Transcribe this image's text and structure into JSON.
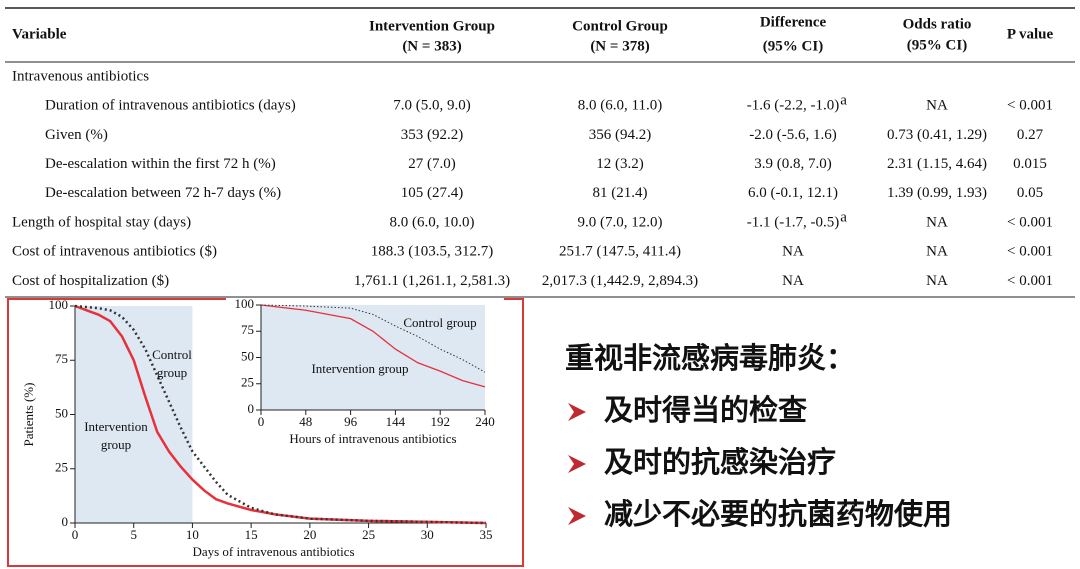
{
  "table": {
    "header": [
      [
        "Variable"
      ],
      [
        "Intervention Group",
        "(N = 383)"
      ],
      [
        "Control Group",
        "(N = 378)"
      ],
      [
        "Difference",
        "(95% CI)"
      ],
      [
        "Odds ratio",
        "(95% CI)"
      ],
      [
        "P value"
      ]
    ],
    "rows": [
      {
        "cells": [
          "Intravenous antibiotics"
        ],
        "indent": false
      },
      {
        "cells": [
          "Duration of intravenous antibiotics (days)",
          "7.0 (5.0, 9.0)",
          "8.0 (6.0, 11.0)",
          "-1.6 (-2.2, -1.0)",
          "NA",
          "< 0.001"
        ],
        "difference_note": "a",
        "indent": true
      },
      {
        "cells": [
          "Given (%)",
          "353 (92.2)",
          "356 (94.2)",
          "-2.0 (-5.6, 1.6)",
          "0.73 (0.41, 1.29)",
          "0.27"
        ],
        "indent": true
      },
      {
        "cells": [
          "De-escalation within the first 72 h (%)",
          "27 (7.0)",
          "12 (3.2)",
          "3.9 (0.8, 7.0)",
          "2.31 (1.15, 4.64)",
          "0.015"
        ],
        "indent": true
      },
      {
        "cells": [
          "De-escalation between 72 h-7 days (%)",
          "105 (27.4)",
          "81 (21.4)",
          "6.0 (-0.1, 12.1)",
          "1.39 (0.99, 1.93)",
          "0.05"
        ],
        "indent": true
      },
      {
        "cells": [
          "Length of hospital stay (days)",
          "8.0 (6.0, 10.0)",
          "9.0 (7.0, 12.0)",
          "-1.1 (-1.7, -0.5)",
          "NA",
          "< 0.001"
        ],
        "difference_note": "a",
        "indent": false
      },
      {
        "cells": [
          "Cost of intravenous antibiotics ($)",
          "188.3 (103.5, 312.7)",
          "251.7 (147.5, 411.4)",
          "NA",
          "NA",
          "< 0.001"
        ],
        "indent": false
      },
      {
        "cells": [
          "Cost of hospitalization ($)",
          "1,761.1 (1,261.1, 2,581.3)",
          "2,017.3 (1,442.9, 2,894.3)",
          "NA",
          "NA",
          "< 0.001"
        ],
        "indent": false
      }
    ]
  },
  "chart_data": [
    {
      "type": "line",
      "x_label": "Days of intravenous antibiotics",
      "y_label": "Patients (%)",
      "x": [
        0,
        2,
        3,
        4,
        5,
        6,
        7,
        8,
        9,
        10,
        11,
        12,
        13,
        15,
        17,
        20,
        25,
        30,
        35
      ],
      "series": [
        {
          "name": "Intervention group",
          "color": "#e8303a",
          "line_style": "solid",
          "values": [
            100,
            96,
            93,
            86,
            75,
            58,
            42,
            33,
            26,
            20,
            15,
            11,
            9,
            6,
            4,
            2,
            1,
            0.5,
            0
          ]
        },
        {
          "name": "Control group",
          "color": "#333333",
          "line_style": "dotted",
          "values": [
            100,
            99,
            98,
            95,
            89,
            80,
            68,
            56,
            44,
            33,
            26,
            19,
            13,
            7,
            4,
            2,
            1,
            0.5,
            0
          ]
        }
      ],
      "annotations": [
        [
          "Control",
          "group"
        ],
        [
          "Intervention",
          "group"
        ]
      ],
      "xlim": [
        0,
        35
      ],
      "xticks": [
        0,
        5,
        10,
        15,
        20,
        25,
        30,
        35
      ],
      "ylim": [
        0,
        100
      ],
      "yticks": [
        0,
        25,
        50,
        75,
        100
      ],
      "highlight_xlim": [
        0,
        10
      ],
      "highlight_color": "#dde8f3"
    },
    {
      "type": "line",
      "x_label": "Hours of intravenous antibiotics",
      "x": [
        0,
        48,
        96,
        120,
        144,
        168,
        192,
        216,
        240
      ],
      "series": [
        {
          "name": "Intervention group",
          "color": "#e8303a",
          "line_style": "solid",
          "values": [
            100,
            95,
            87,
            75,
            58,
            45,
            37,
            28,
            22
          ]
        },
        {
          "name": "Control group",
          "color": "#333333",
          "line_style": "dotted",
          "values": [
            100,
            99,
            97,
            91,
            80,
            70,
            58,
            48,
            36
          ]
        }
      ],
      "annotations": [
        [
          "Control group"
        ],
        [
          "Intervention group"
        ]
      ],
      "xlim": [
        0,
        240
      ],
      "xticks": [
        0,
        48,
        96,
        144,
        192,
        240
      ],
      "ylim": [
        0,
        100
      ],
      "yticks": [
        0,
        25,
        50,
        75,
        100
      ],
      "highlight_xlim": [
        0,
        240
      ],
      "highlight_color": "#dde8f3"
    }
  ],
  "bullets": {
    "title": "重视非流感病毒肺炎：",
    "items": [
      "及时得当的检查",
      "及时的抗感染治疗",
      "减少不必要的抗菌药物使用"
    ]
  }
}
